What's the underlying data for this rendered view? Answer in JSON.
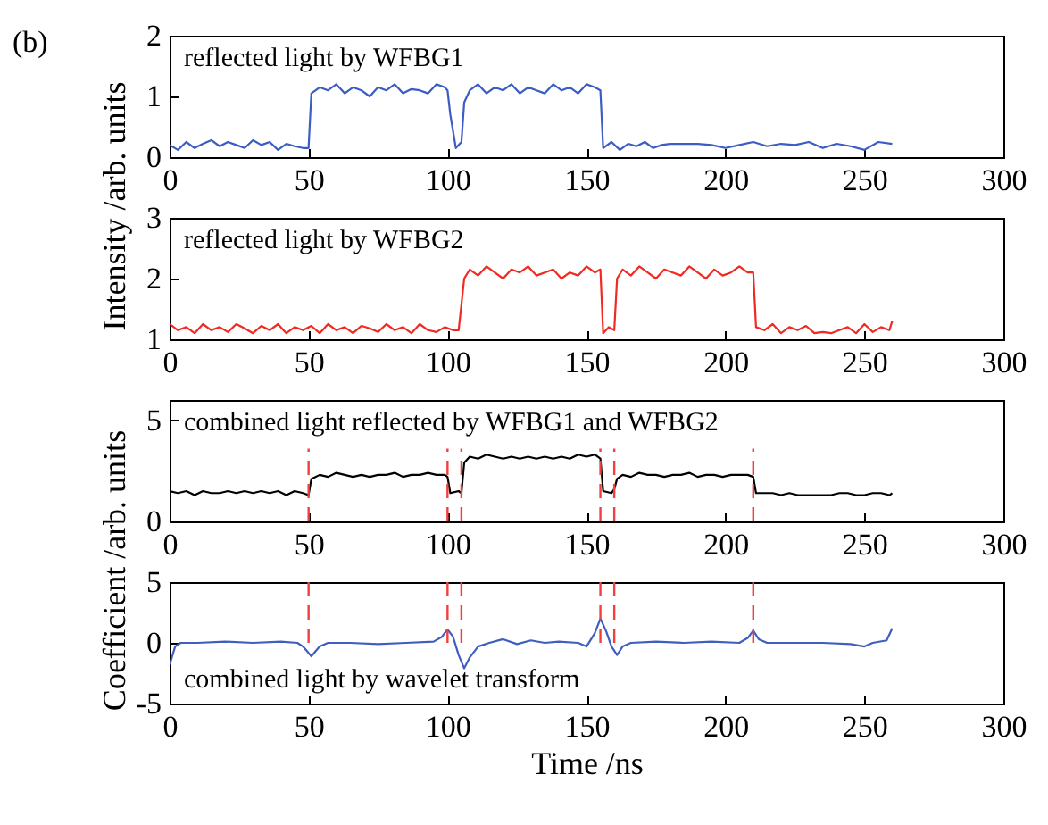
{
  "chart_data": [
    {
      "type": "line",
      "title": "reflected light by WFBG1",
      "ylabel": "Intensity /arb. units",
      "annotations": [
        "(b)"
      ],
      "xlim": [
        0,
        300
      ],
      "xticks": [
        0,
        50,
        100,
        150,
        200,
        250,
        300
      ],
      "ylim": [
        0,
        2
      ],
      "yticks": [
        0,
        1,
        2
      ],
      "x": [
        0,
        3,
        6,
        9,
        12,
        15,
        18,
        21,
        24,
        27,
        30,
        33,
        36,
        39,
        42,
        45,
        48,
        50,
        51,
        54,
        57,
        60,
        63,
        66,
        69,
        72,
        75,
        78,
        81,
        84,
        87,
        90,
        93,
        96,
        99,
        100,
        101,
        103,
        105,
        106,
        108,
        111,
        114,
        117,
        120,
        123,
        126,
        129,
        132,
        135,
        138,
        141,
        144,
        147,
        150,
        153,
        155,
        156,
        159,
        162,
        165,
        168,
        171,
        174,
        177,
        180,
        185,
        190,
        195,
        200,
        205,
        210,
        215,
        220,
        225,
        230,
        235,
        240,
        245,
        250,
        255,
        260
      ],
      "series": [
        {
          "color": "#3a5cc4",
          "values": [
            0.2,
            0.12,
            0.25,
            0.15,
            0.22,
            0.28,
            0.18,
            0.25,
            0.2,
            0.15,
            0.28,
            0.2,
            0.25,
            0.12,
            0.22,
            0.18,
            0.15,
            0.15,
            1.05,
            1.15,
            1.1,
            1.2,
            1.05,
            1.15,
            1.1,
            1.0,
            1.15,
            1.1,
            1.2,
            1.05,
            1.12,
            1.1,
            1.05,
            1.2,
            1.15,
            1.1,
            0.7,
            0.15,
            0.25,
            0.9,
            1.1,
            1.2,
            1.05,
            1.15,
            1.1,
            1.2,
            1.05,
            1.15,
            1.1,
            1.05,
            1.2,
            1.1,
            1.15,
            1.05,
            1.2,
            1.15,
            1.1,
            0.15,
            0.25,
            0.12,
            0.22,
            0.18,
            0.25,
            0.15,
            0.2,
            0.22,
            0.22,
            0.22,
            0.2,
            0.15,
            0.2,
            0.25,
            0.18,
            0.22,
            0.2,
            0.25,
            0.15,
            0.22,
            0.18,
            0.12,
            0.25,
            0.22
          ]
        }
      ]
    },
    {
      "type": "line",
      "title": "reflected light by WFBG2",
      "xlim": [
        0,
        300
      ],
      "xticks": [
        0,
        50,
        100,
        150,
        200,
        250,
        300
      ],
      "ylim": [
        1,
        3
      ],
      "yticks": [
        1,
        2,
        3
      ],
      "x": [
        0,
        3,
        6,
        9,
        12,
        15,
        18,
        21,
        24,
        27,
        30,
        33,
        36,
        39,
        42,
        45,
        48,
        51,
        54,
        57,
        60,
        63,
        66,
        69,
        72,
        75,
        78,
        81,
        84,
        87,
        90,
        93,
        96,
        99,
        102,
        104,
        106,
        108,
        111,
        114,
        117,
        120,
        123,
        126,
        129,
        132,
        135,
        138,
        141,
        144,
        147,
        150,
        153,
        155,
        156,
        158,
        160,
        161,
        163,
        166,
        169,
        172,
        175,
        178,
        181,
        184,
        187,
        190,
        193,
        196,
        199,
        202,
        205,
        208,
        210,
        211,
        214,
        217,
        220,
        223,
        226,
        229,
        232,
        235,
        238,
        241,
        244,
        247,
        250,
        253,
        256,
        259,
        260
      ],
      "series": [
        {
          "color": "#f02a20",
          "values": [
            1.25,
            1.15,
            1.2,
            1.1,
            1.25,
            1.15,
            1.2,
            1.12,
            1.25,
            1.18,
            1.1,
            1.22,
            1.15,
            1.25,
            1.1,
            1.2,
            1.15,
            1.22,
            1.1,
            1.25,
            1.15,
            1.2,
            1.1,
            1.22,
            1.18,
            1.12,
            1.25,
            1.15,
            1.2,
            1.1,
            1.25,
            1.15,
            1.12,
            1.2,
            1.15,
            1.15,
            2.0,
            2.15,
            2.05,
            2.2,
            2.1,
            2.0,
            2.15,
            2.1,
            2.2,
            2.05,
            2.1,
            2.15,
            2.0,
            2.1,
            2.05,
            2.2,
            2.1,
            2.15,
            1.1,
            1.2,
            1.15,
            2.0,
            2.15,
            2.05,
            2.2,
            2.1,
            2.0,
            2.15,
            2.1,
            2.05,
            2.2,
            2.1,
            2.0,
            2.15,
            2.05,
            2.1,
            2.2,
            2.1,
            2.1,
            1.2,
            1.15,
            1.25,
            1.1,
            1.2,
            1.15,
            1.22,
            1.1,
            1.12,
            1.1,
            1.15,
            1.2,
            1.1,
            1.25,
            1.12,
            1.2,
            1.15,
            1.3
          ]
        }
      ]
    },
    {
      "type": "line",
      "title": "combined light reflected by WFBG1 and WFBG2",
      "ylabel": "Coefficient /arb. units",
      "xlim": [
        0,
        300
      ],
      "xticks": [
        0,
        50,
        100,
        150,
        200,
        250,
        300
      ],
      "ylim": [
        0,
        6
      ],
      "yticks": [
        0,
        5
      ],
      "x": [
        0,
        3,
        6,
        9,
        12,
        15,
        18,
        21,
        24,
        27,
        30,
        33,
        36,
        39,
        42,
        45,
        48,
        50,
        51,
        54,
        57,
        60,
        63,
        66,
        69,
        72,
        75,
        78,
        81,
        84,
        87,
        90,
        93,
        96,
        99,
        100,
        101,
        104,
        105,
        106,
        108,
        111,
        114,
        117,
        120,
        123,
        126,
        129,
        132,
        135,
        138,
        141,
        144,
        147,
        150,
        153,
        155,
        156,
        159,
        160,
        161,
        163,
        166,
        169,
        172,
        175,
        178,
        181,
        184,
        187,
        190,
        193,
        196,
        199,
        202,
        205,
        208,
        210,
        211,
        214,
        217,
        220,
        223,
        226,
        229,
        232,
        235,
        238,
        241,
        244,
        247,
        250,
        253,
        256,
        259,
        260
      ],
      "series": [
        {
          "color": "#000000",
          "values": [
            1.5,
            1.4,
            1.5,
            1.3,
            1.5,
            1.4,
            1.4,
            1.5,
            1.4,
            1.5,
            1.4,
            1.5,
            1.4,
            1.5,
            1.3,
            1.5,
            1.4,
            1.3,
            2.1,
            2.3,
            2.2,
            2.4,
            2.3,
            2.2,
            2.3,
            2.2,
            2.3,
            2.3,
            2.4,
            2.2,
            2.3,
            2.3,
            2.4,
            2.3,
            2.3,
            2.2,
            1.4,
            1.5,
            1.4,
            2.9,
            3.2,
            3.1,
            3.3,
            3.2,
            3.1,
            3.2,
            3.1,
            3.2,
            3.1,
            3.2,
            3.1,
            3.2,
            3.1,
            3.3,
            3.2,
            3.3,
            3.1,
            1.5,
            1.4,
            1.6,
            2.1,
            2.3,
            2.2,
            2.4,
            2.3,
            2.3,
            2.2,
            2.3,
            2.3,
            2.4,
            2.2,
            2.3,
            2.3,
            2.2,
            2.3,
            2.3,
            2.3,
            2.2,
            1.4,
            1.4,
            1.4,
            1.3,
            1.4,
            1.3,
            1.3,
            1.3,
            1.3,
            1.3,
            1.4,
            1.4,
            1.3,
            1.3,
            1.4,
            1.4,
            1.3,
            1.4
          ]
        }
      ],
      "ref_lines": [
        {
          "axis": "x",
          "value": 50,
          "color": "#f04040",
          "line_style": "dashed"
        },
        {
          "axis": "x",
          "value": 100,
          "color": "#f04040",
          "line_style": "dashed"
        },
        {
          "axis": "x",
          "value": 105,
          "color": "#f04040",
          "line_style": "dashed"
        },
        {
          "axis": "x",
          "value": 155,
          "color": "#f04040",
          "line_style": "dashed"
        },
        {
          "axis": "x",
          "value": 160,
          "color": "#f04040",
          "line_style": "dashed"
        },
        {
          "axis": "x",
          "value": 210,
          "color": "#f04040",
          "line_style": "dashed"
        }
      ]
    },
    {
      "type": "line",
      "title": "combined light by wavelet transform",
      "xlabel": "Time /ns",
      "xlim": [
        0,
        300
      ],
      "xticks": [
        0,
        50,
        100,
        150,
        200,
        250,
        300
      ],
      "ylim": [
        -5,
        5
      ],
      "yticks": [
        -5,
        0,
        5
      ],
      "x": [
        0,
        2,
        4,
        10,
        20,
        30,
        40,
        46,
        48,
        51,
        54,
        57,
        65,
        75,
        85,
        95,
        98,
        100,
        102,
        104,
        106,
        108,
        111,
        115,
        120,
        125,
        130,
        135,
        140,
        147,
        150,
        153,
        155,
        157,
        159,
        161,
        163,
        166,
        175,
        185,
        195,
        205,
        208,
        210,
        212,
        215,
        225,
        235,
        245,
        250,
        253,
        258,
        260
      ],
      "series": [
        {
          "color": "#3f5fc0",
          "values": [
            -1.8,
            -0.3,
            0,
            0,
            0.1,
            0,
            0.1,
            0,
            -0.3,
            -1.1,
            -0.3,
            0,
            0,
            -0.1,
            0,
            0.1,
            0.5,
            1.1,
            0.5,
            -1,
            -2.1,
            -1.2,
            -0.3,
            0,
            0.3,
            -0.1,
            0.2,
            0,
            0.1,
            0,
            -0.3,
            0.8,
            2,
            1,
            -0.3,
            -1,
            -0.3,
            0,
            0.1,
            0,
            0.1,
            0,
            0.4,
            1,
            0.3,
            0,
            0,
            0,
            -0.1,
            -0.3,
            0,
            0.2,
            1.2
          ]
        }
      ],
      "ref_lines": [
        {
          "axis": "x",
          "value": 50,
          "color": "#f04040",
          "line_style": "dashed"
        },
        {
          "axis": "x",
          "value": 100,
          "color": "#f04040",
          "line_style": "dashed"
        },
        {
          "axis": "x",
          "value": 105,
          "color": "#f04040",
          "line_style": "dashed"
        },
        {
          "axis": "x",
          "value": 155,
          "color": "#f04040",
          "line_style": "dashed"
        },
        {
          "axis": "x",
          "value": 160,
          "color": "#f04040",
          "line_style": "dashed"
        },
        {
          "axis": "x",
          "value": 210,
          "color": "#f04040",
          "line_style": "dashed"
        }
      ]
    }
  ]
}
